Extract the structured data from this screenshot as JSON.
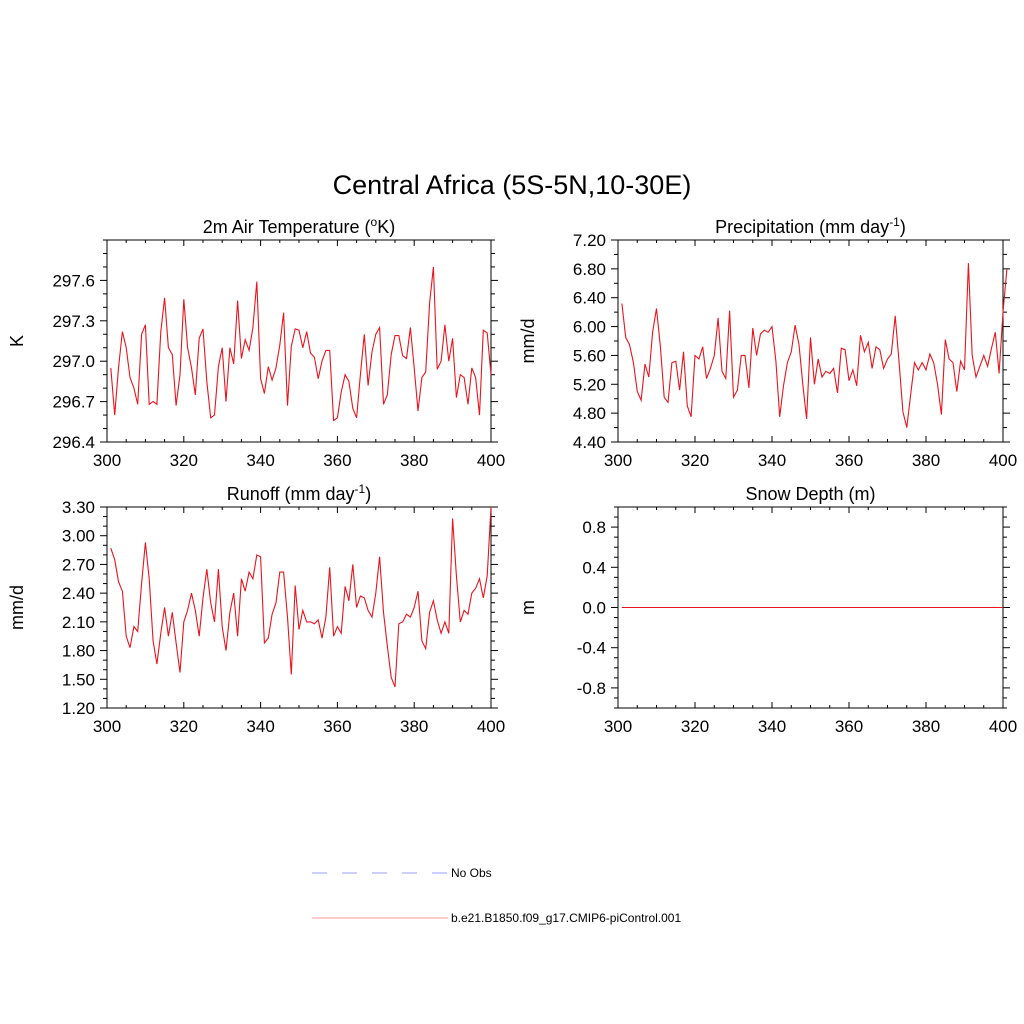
{
  "title": "Central Africa (5S-5N,10-30E)",
  "legend": [
    {
      "label": "No Obs",
      "color": "#9b9bff",
      "dash": true
    },
    {
      "label": "b.e21.B1850.f09_g17.CMIP6-piControl.001",
      "color": "#ff9a9a",
      "dash": false
    }
  ],
  "chart_data": [
    {
      "type": "line",
      "title_main": "2m Air Temperature (",
      "title_sup": "o",
      "title_after": "K)",
      "ylabel": "K",
      "xlim": [
        300,
        400
      ],
      "ylim": [
        296.4,
        297.9
      ],
      "xticks": [
        300,
        320,
        340,
        360,
        380,
        400
      ],
      "xtick_labels": [
        "300",
        "320",
        "340",
        "360",
        "380",
        "400"
      ],
      "yticks": [
        296.4,
        296.7,
        297.0,
        297.3,
        297.6
      ],
      "ytick_labels": [
        "296.4",
        "296.7",
        "297.0",
        "297.3",
        "297.6"
      ],
      "y_minor_step": 0.1,
      "series": [
        {
          "color": "#e8141e",
          "x_start": 301,
          "values": [
            296.95,
            296.6,
            296.95,
            297.22,
            297.1,
            296.88,
            296.8,
            296.68,
            297.2,
            297.27,
            296.68,
            296.7,
            296.68,
            297.22,
            297.47,
            297.1,
            297.05,
            296.67,
            296.9,
            297.46,
            297.1,
            296.95,
            296.75,
            297.17,
            297.24,
            296.85,
            296.58,
            296.6,
            296.96,
            297.1,
            296.7,
            297.1,
            296.98,
            297.45,
            297.02,
            297.16,
            297.08,
            297.25,
            297.59,
            296.87,
            296.76,
            296.96,
            296.86,
            296.95,
            297.12,
            297.36,
            296.67,
            297.11,
            297.24,
            297.23,
            297.1,
            297.22,
            297.06,
            297.03,
            296.87,
            297.0,
            297.08,
            297.08,
            296.56,
            296.58,
            296.77,
            296.9,
            296.85,
            296.65,
            296.58,
            296.9,
            297.2,
            296.82,
            297.07,
            297.2,
            297.25,
            296.68,
            296.75,
            297.05,
            297.19,
            297.19,
            297.04,
            297.02,
            297.25,
            296.95,
            296.63,
            296.88,
            296.92,
            297.43,
            297.7,
            296.94,
            297.0,
            297.27,
            297.0,
            297.17,
            296.73,
            296.9,
            296.88,
            296.68,
            296.95,
            296.88,
            296.6,
            297.23,
            297.21,
            296.9
          ]
        }
      ]
    },
    {
      "type": "line",
      "title_main": "Precipitation (mm day",
      "title_sup": "-1",
      "title_after": ")",
      "ylabel": "mm/d",
      "xlim": [
        300,
        400
      ],
      "ylim": [
        4.4,
        7.2
      ],
      "xticks": [
        300,
        320,
        340,
        360,
        380,
        400
      ],
      "xtick_labels": [
        "300",
        "320",
        "340",
        "360",
        "380",
        "400"
      ],
      "yticks": [
        4.4,
        4.8,
        5.2,
        5.6,
        6.0,
        6.4,
        6.8,
        7.2
      ],
      "ytick_labels": [
        "4.40",
        "4.80",
        "5.20",
        "5.60",
        "6.00",
        "6.40",
        "6.80",
        "7.20"
      ],
      "y_minor_step": 0.2,
      "series": [
        {
          "color": "#e8141e",
          "x_start": 301,
          "values": [
            6.32,
            5.85,
            5.75,
            5.5,
            5.1,
            4.98,
            5.48,
            5.3,
            5.92,
            6.25,
            5.72,
            5.02,
            4.95,
            5.5,
            5.52,
            5.12,
            5.65,
            4.9,
            4.75,
            5.6,
            5.55,
            5.72,
            5.28,
            5.42,
            5.6,
            6.12,
            5.38,
            5.28,
            6.22,
            5.02,
            5.12,
            5.6,
            5.6,
            5.15,
            5.98,
            5.6,
            5.9,
            5.95,
            5.92,
            6.0,
            5.52,
            4.75,
            5.18,
            5.5,
            5.65,
            6.02,
            5.75,
            5.2,
            4.72,
            5.85,
            5.2,
            5.55,
            5.3,
            5.38,
            5.35,
            5.42,
            5.08,
            5.7,
            5.68,
            5.25,
            5.4,
            5.18,
            5.88,
            5.65,
            5.78,
            5.42,
            5.72,
            5.68,
            5.42,
            5.55,
            5.62,
            6.15,
            5.52,
            4.82,
            4.6,
            5.05,
            5.5,
            5.4,
            5.5,
            5.4,
            5.62,
            5.5,
            5.2,
            4.78,
            5.82,
            5.55,
            5.5,
            5.1,
            5.52,
            5.4,
            6.88,
            5.6,
            5.3,
            5.45,
            5.6,
            5.45,
            5.7,
            5.92,
            5.35,
            6.2,
            6.8
          ]
        }
      ]
    },
    {
      "type": "line",
      "title_main": "Runoff (mm day",
      "title_sup": "-1",
      "title_after": ")",
      "ylabel": "mm/d",
      "xlim": [
        300,
        400
      ],
      "ylim": [
        1.2,
        3.3
      ],
      "xticks": [
        300,
        320,
        340,
        360,
        380,
        400
      ],
      "xtick_labels": [
        "300",
        "320",
        "340",
        "360",
        "380",
        "400"
      ],
      "yticks": [
        1.2,
        1.5,
        1.8,
        2.1,
        2.4,
        2.7,
        3.0,
        3.3
      ],
      "ytick_labels": [
        "1.20",
        "1.50",
        "1.80",
        "2.10",
        "2.40",
        "2.70",
        "3.00",
        "3.30"
      ],
      "y_minor_step": 0.1,
      "series": [
        {
          "color": "#e8141e",
          "x_start": 301,
          "values": [
            2.87,
            2.75,
            2.52,
            2.42,
            1.95,
            1.83,
            2.05,
            2.0,
            2.5,
            2.93,
            2.55,
            1.9,
            1.66,
            1.98,
            2.25,
            1.95,
            2.2,
            1.88,
            1.57,
            2.1,
            2.22,
            2.4,
            2.22,
            1.95,
            2.35,
            2.65,
            2.3,
            2.1,
            2.65,
            2.05,
            1.8,
            2.2,
            2.4,
            1.95,
            2.55,
            2.42,
            2.62,
            2.55,
            2.8,
            2.78,
            1.88,
            1.93,
            2.18,
            2.3,
            2.62,
            2.62,
            2.15,
            1.55,
            2.48,
            2.02,
            2.22,
            2.1,
            2.1,
            2.08,
            2.12,
            1.93,
            2.15,
            2.67,
            1.95,
            2.05,
            1.98,
            2.47,
            2.32,
            2.7,
            2.25,
            2.37,
            2.35,
            2.22,
            2.15,
            2.4,
            2.78,
            2.2,
            1.85,
            1.52,
            1.42,
            2.08,
            2.1,
            2.18,
            2.15,
            2.25,
            2.42,
            1.9,
            1.82,
            2.2,
            2.32,
            2.12,
            1.98,
            2.1,
            1.98,
            3.18,
            2.58,
            2.1,
            2.22,
            2.18,
            2.4,
            2.45,
            2.55,
            2.35,
            2.58,
            3.3
          ]
        }
      ]
    },
    {
      "type": "line",
      "title_main": "Snow Depth (m)",
      "title_sup": "",
      "title_after": "",
      "ylabel": "m",
      "xlim": [
        300,
        400
      ],
      "ylim": [
        -1.0,
        1.0
      ],
      "xticks": [
        300,
        320,
        340,
        360,
        380,
        400
      ],
      "xtick_labels": [
        "300",
        "320",
        "340",
        "360",
        "380",
        "400"
      ],
      "yticks": [
        -0.8,
        -0.4,
        0.0,
        0.4,
        0.8
      ],
      "ytick_labels": [
        "-0.8",
        "-0.4",
        "0.0",
        "0.4",
        "0.8"
      ],
      "y_minor_step": 0.1,
      "series": [
        {
          "color": "#e8141e",
          "x": [
            301,
            400
          ],
          "values": [
            0.0,
            0.0
          ]
        }
      ]
    }
  ]
}
